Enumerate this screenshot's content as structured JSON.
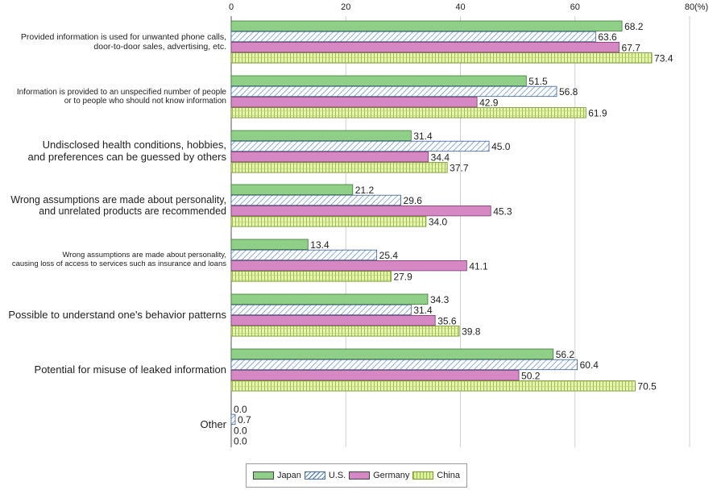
{
  "chart_data": {
    "type": "bar",
    "orientation": "horizontal",
    "unit": "(%)",
    "xlim": [
      0,
      80
    ],
    "ticks": [
      "0",
      "20",
      "40",
      "60",
      "80"
    ],
    "grid": true,
    "categories": [
      "Provided information is used for unwanted phone calls,\ndoor-to-door sales, advertising, etc.",
      "Information is provided to an unspecified number of people\nor to people who should not know information",
      "Undisclosed health conditions, hobbies,\nand preferences can be guessed by others",
      "Wrong assumptions are made about personality,\nand unrelated products are recommended",
      "Wrong assumptions are made about personality,\ncausing loss of access to services such as insurance and loans",
      "Possible to understand one's behavior patterns",
      "Potential for misuse of leaked information",
      "Other"
    ],
    "series": [
      {
        "name": "Japan",
        "values": [
          68.2,
          51.5,
          31.4,
          21.2,
          13.4,
          34.3,
          56.2,
          0.0
        ]
      },
      {
        "name": "U.S.",
        "values": [
          63.6,
          56.8,
          45.0,
          29.6,
          25.4,
          31.4,
          60.4,
          0.7
        ]
      },
      {
        "name": "Germany",
        "values": [
          67.7,
          42.9,
          34.4,
          45.3,
          41.1,
          35.6,
          50.2,
          0.0
        ]
      },
      {
        "name": "China",
        "values": [
          73.4,
          61.9,
          37.7,
          34.0,
          27.9,
          39.8,
          70.5,
          0.0
        ]
      }
    ],
    "value_labels": [
      [
        "68.2",
        "51.5",
        "31.4",
        "21.2",
        "13.4",
        "34.3",
        "56.2",
        "0.0"
      ],
      [
        "63.6",
        "56.8",
        "45.0",
        "29.6",
        "25.4",
        "31.4",
        "60.4",
        "0.7"
      ],
      [
        "67.7",
        "42.9",
        "34.4",
        "45.3",
        "41.1",
        "35.6",
        "50.2",
        "0.0"
      ],
      [
        "73.4",
        "61.9",
        "37.7",
        "34.0",
        "27.9",
        "39.8",
        "70.5",
        "0.0"
      ]
    ],
    "legend_position": "bottom",
    "colors": {
      "Japan": "#8fcf87",
      "U.S.": "#5b88c6",
      "Germany": "#d588c3",
      "China": "#ddefa0"
    }
  }
}
